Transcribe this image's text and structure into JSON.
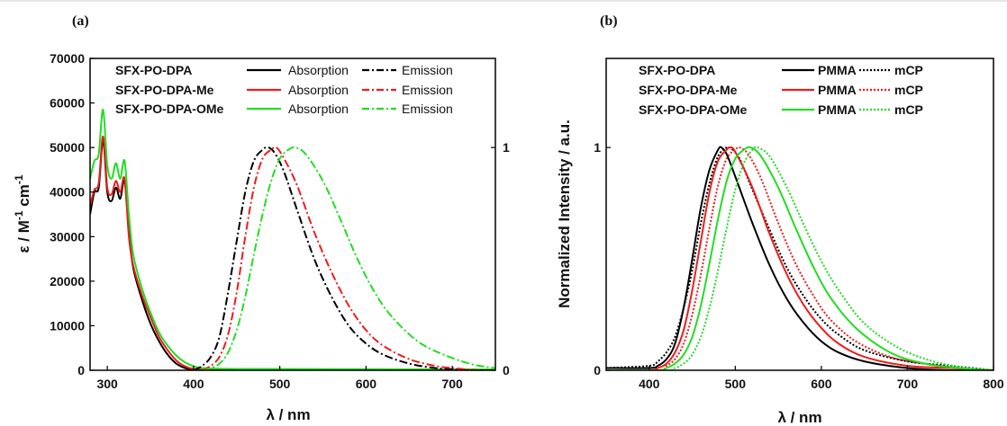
{
  "colors": {
    "SFX-PO-DPA": "#000000",
    "SFX-PO-DPA-Me": "#ee1c1c",
    "SFX-PO-DPA-OMe": "#22dd22"
  },
  "chart_data": [
    {
      "panel_label": "(a)",
      "type": "line",
      "xlabel": "λ / nm",
      "ylabel": "ε / M",
      "ylabel_sup1": "-1",
      "ylabel_mid": " cm",
      "ylabel_sup2": "-1",
      "xlim": [
        280,
        750
      ],
      "ylim": [
        0,
        70000
      ],
      "y2lim": [
        0,
        1.4
      ],
      "xticks": [
        300,
        400,
        500,
        600,
        700
      ],
      "yticks": [
        0,
        10000,
        20000,
        30000,
        40000,
        50000,
        60000,
        70000
      ],
      "y2ticks": [
        0,
        1
      ],
      "legend_position": "top",
      "legend": [
        {
          "name": "SFX-PO-DPA",
          "color": "#000000",
          "abs_label": "Absorption",
          "em_label": "Emission"
        },
        {
          "name": "SFX-PO-DPA-Me",
          "color": "#ee1c1c",
          "abs_label": "Absorption",
          "em_label": "Emission"
        },
        {
          "name": "SFX-PO-DPA-OMe",
          "color": "#22dd22",
          "abs_label": "Absorption",
          "em_label": "Emission"
        }
      ],
      "series": [
        {
          "name": "SFX-PO-DPA",
          "kind": "Absorption",
          "axis": "left",
          "color": "#000000",
          "style": "solid",
          "x": [
            280,
            285,
            290,
            295,
            300,
            305,
            310,
            315,
            320,
            325,
            330,
            340,
            350,
            360,
            370,
            380,
            390,
            400,
            420,
            450,
            500,
            600,
            750
          ],
          "y": [
            35000,
            40000,
            41000,
            51500,
            40000,
            38000,
            41000,
            38500,
            42500,
            31000,
            23000,
            16000,
            10500,
            6500,
            3500,
            1500,
            500,
            100,
            0,
            0,
            0,
            0,
            0
          ]
        },
        {
          "name": "SFX-PO-DPA-Me",
          "kind": "Absorption",
          "axis": "left",
          "color": "#ee1c1c",
          "style": "solid",
          "x": [
            280,
            285,
            290,
            295,
            300,
            305,
            310,
            315,
            320,
            325,
            330,
            340,
            350,
            360,
            370,
            380,
            390,
            400,
            420,
            450,
            500,
            600,
            750
          ],
          "y": [
            37000,
            40500,
            42000,
            52500,
            41000,
            39500,
            42500,
            40000,
            43000,
            30000,
            23500,
            17000,
            12000,
            7500,
            4500,
            2200,
            900,
            300,
            50,
            0,
            0,
            0,
            0
          ]
        },
        {
          "name": "SFX-PO-DPA-OMe",
          "kind": "Absorption",
          "axis": "left",
          "color": "#22dd22",
          "style": "solid",
          "x": [
            280,
            285,
            290,
            295,
            300,
            305,
            310,
            315,
            320,
            325,
            330,
            340,
            350,
            360,
            370,
            380,
            390,
            400,
            410,
            420,
            450,
            500,
            600,
            700,
            750
          ],
          "y": [
            43000,
            47000,
            48500,
            58500,
            46000,
            43000,
            46500,
            43000,
            47000,
            35000,
            26000,
            18500,
            13000,
            8500,
            5500,
            3300,
            1800,
            900,
            500,
            400,
            300,
            300,
            250,
            200,
            200
          ]
        },
        {
          "name": "SFX-PO-DPA",
          "kind": "Emission",
          "axis": "right",
          "color": "#000000",
          "style": "dashdot",
          "x": [
            400,
            410,
            420,
            430,
            440,
            450,
            460,
            470,
            480,
            487,
            495,
            505,
            520,
            540,
            560,
            580,
            600,
            620,
            650,
            680,
            700,
            720,
            750
          ],
          "y": [
            0.0,
            0.02,
            0.06,
            0.15,
            0.35,
            0.58,
            0.8,
            0.94,
            0.99,
            1.0,
            0.97,
            0.89,
            0.72,
            0.5,
            0.33,
            0.2,
            0.12,
            0.07,
            0.03,
            0.01,
            0.005,
            0.0,
            0.0
          ]
        },
        {
          "name": "SFX-PO-DPA-Me",
          "kind": "Emission",
          "axis": "right",
          "color": "#ee1c1c",
          "style": "dashdot",
          "x": [
            410,
            420,
            430,
            440,
            450,
            460,
            470,
            480,
            490,
            496,
            505,
            520,
            540,
            560,
            580,
            600,
            620,
            650,
            680,
            700,
            730,
            750
          ],
          "y": [
            0.0,
            0.02,
            0.06,
            0.16,
            0.35,
            0.6,
            0.82,
            0.95,
            0.99,
            1.0,
            0.95,
            0.83,
            0.62,
            0.44,
            0.29,
            0.18,
            0.11,
            0.05,
            0.02,
            0.01,
            0.0,
            0.0
          ]
        },
        {
          "name": "SFX-PO-DPA-OMe",
          "kind": "Emission",
          "axis": "right",
          "color": "#22dd22",
          "style": "dashdot",
          "x": [
            410,
            420,
            430,
            440,
            450,
            460,
            470,
            480,
            490,
            500,
            510,
            518,
            530,
            550,
            570,
            590,
            610,
            630,
            660,
            690,
            720,
            740,
            750
          ],
          "y": [
            0.0,
            0.01,
            0.03,
            0.08,
            0.18,
            0.33,
            0.52,
            0.7,
            0.85,
            0.95,
            0.99,
            1.0,
            0.97,
            0.85,
            0.68,
            0.5,
            0.35,
            0.24,
            0.13,
            0.07,
            0.03,
            0.015,
            0.01
          ]
        }
      ]
    },
    {
      "panel_label": "(b)",
      "type": "line",
      "xlabel": "λ / nm",
      "ylabel": "Normalized Intensity / a.u.",
      "xlim": [
        350,
        800
      ],
      "ylim": [
        0,
        1.4
      ],
      "xticks": [
        400,
        500,
        600,
        700,
        800
      ],
      "yticks": [
        0,
        1
      ],
      "legend_position": "top-left",
      "legend": [
        {
          "name": "SFX-PO-DPA",
          "color": "#000000",
          "pmma_label": "PMMA",
          "mcp_label": "mCP"
        },
        {
          "name": "SFX-PO-DPA-Me",
          "color": "#ee1c1c",
          "pmma_label": "PMMA",
          "mcp_label": "mCP"
        },
        {
          "name": "SFX-PO-DPA-OMe",
          "color": "#22dd22",
          "pmma_label": "PMMA",
          "mcp_label": "mCP"
        }
      ],
      "series": [
        {
          "name": "SFX-PO-DPA",
          "kind": "PMMA",
          "color": "#000000",
          "style": "solid",
          "x": [
            350,
            400,
            410,
            420,
            430,
            440,
            450,
            460,
            470,
            480,
            484,
            490,
            500,
            520,
            540,
            560,
            580,
            600,
            620,
            650,
            700,
            750,
            800
          ],
          "y": [
            0.01,
            0.01,
            0.02,
            0.05,
            0.12,
            0.28,
            0.5,
            0.73,
            0.9,
            0.99,
            1.0,
            0.97,
            0.87,
            0.66,
            0.47,
            0.32,
            0.21,
            0.13,
            0.08,
            0.04,
            0.01,
            0.0,
            0.0
          ]
        },
        {
          "name": "SFX-PO-DPA",
          "kind": "mCP",
          "color": "#000000",
          "style": "dotted",
          "x": [
            350,
            400,
            410,
            420,
            430,
            440,
            450,
            460,
            470,
            480,
            490,
            497,
            505,
            520,
            540,
            560,
            580,
            600,
            620,
            650,
            700,
            750,
            800
          ],
          "y": [
            0.01,
            0.02,
            0.04,
            0.08,
            0.15,
            0.28,
            0.45,
            0.66,
            0.84,
            0.96,
            1.0,
            0.99,
            0.95,
            0.81,
            0.63,
            0.46,
            0.33,
            0.23,
            0.16,
            0.09,
            0.04,
            0.02,
            0.0
          ]
        },
        {
          "name": "SFX-PO-DPA-Me",
          "kind": "PMMA",
          "color": "#ee1c1c",
          "style": "solid",
          "x": [
            350,
            400,
            410,
            420,
            430,
            440,
            450,
            460,
            470,
            480,
            490,
            494,
            500,
            520,
            540,
            560,
            580,
            600,
            620,
            650,
            700,
            750,
            800
          ],
          "y": [
            0.0,
            0.0,
            0.01,
            0.03,
            0.08,
            0.18,
            0.36,
            0.58,
            0.8,
            0.94,
            0.99,
            1.0,
            0.98,
            0.82,
            0.61,
            0.43,
            0.29,
            0.19,
            0.12,
            0.06,
            0.02,
            0.01,
            0.0
          ]
        },
        {
          "name": "SFX-PO-DPA-Me",
          "kind": "mCP",
          "color": "#ee1c1c",
          "style": "dotted",
          "x": [
            350,
            410,
            420,
            430,
            440,
            450,
            460,
            470,
            480,
            490,
            500,
            505,
            515,
            530,
            550,
            570,
            590,
            610,
            640,
            680,
            720,
            760,
            800
          ],
          "y": [
            0.0,
            0.0,
            0.02,
            0.05,
            0.12,
            0.25,
            0.43,
            0.64,
            0.83,
            0.95,
            0.99,
            1.0,
            0.97,
            0.86,
            0.66,
            0.48,
            0.34,
            0.23,
            0.13,
            0.06,
            0.03,
            0.01,
            0.0
          ]
        },
        {
          "name": "SFX-PO-DPA-OMe",
          "kind": "PMMA",
          "color": "#22dd22",
          "style": "solid",
          "x": [
            350,
            410,
            420,
            430,
            440,
            450,
            460,
            470,
            480,
            490,
            500,
            510,
            518,
            530,
            550,
            570,
            590,
            610,
            640,
            680,
            720,
            760,
            800
          ],
          "y": [
            0.0,
            0.0,
            0.01,
            0.03,
            0.07,
            0.15,
            0.29,
            0.48,
            0.68,
            0.85,
            0.95,
            0.99,
            1.0,
            0.96,
            0.82,
            0.64,
            0.47,
            0.33,
            0.19,
            0.08,
            0.03,
            0.01,
            0.0
          ]
        },
        {
          "name": "SFX-PO-DPA-OMe",
          "kind": "mCP",
          "color": "#22dd22",
          "style": "dotted",
          "x": [
            350,
            420,
            430,
            440,
            450,
            460,
            470,
            480,
            490,
            500,
            510,
            520,
            526,
            540,
            560,
            580,
            600,
            620,
            650,
            690,
            730,
            770,
            800
          ],
          "y": [
            0.0,
            0.0,
            0.01,
            0.03,
            0.07,
            0.15,
            0.28,
            0.45,
            0.64,
            0.81,
            0.93,
            0.99,
            1.0,
            0.96,
            0.82,
            0.65,
            0.49,
            0.36,
            0.21,
            0.1,
            0.04,
            0.01,
            0.0
          ]
        }
      ]
    }
  ]
}
